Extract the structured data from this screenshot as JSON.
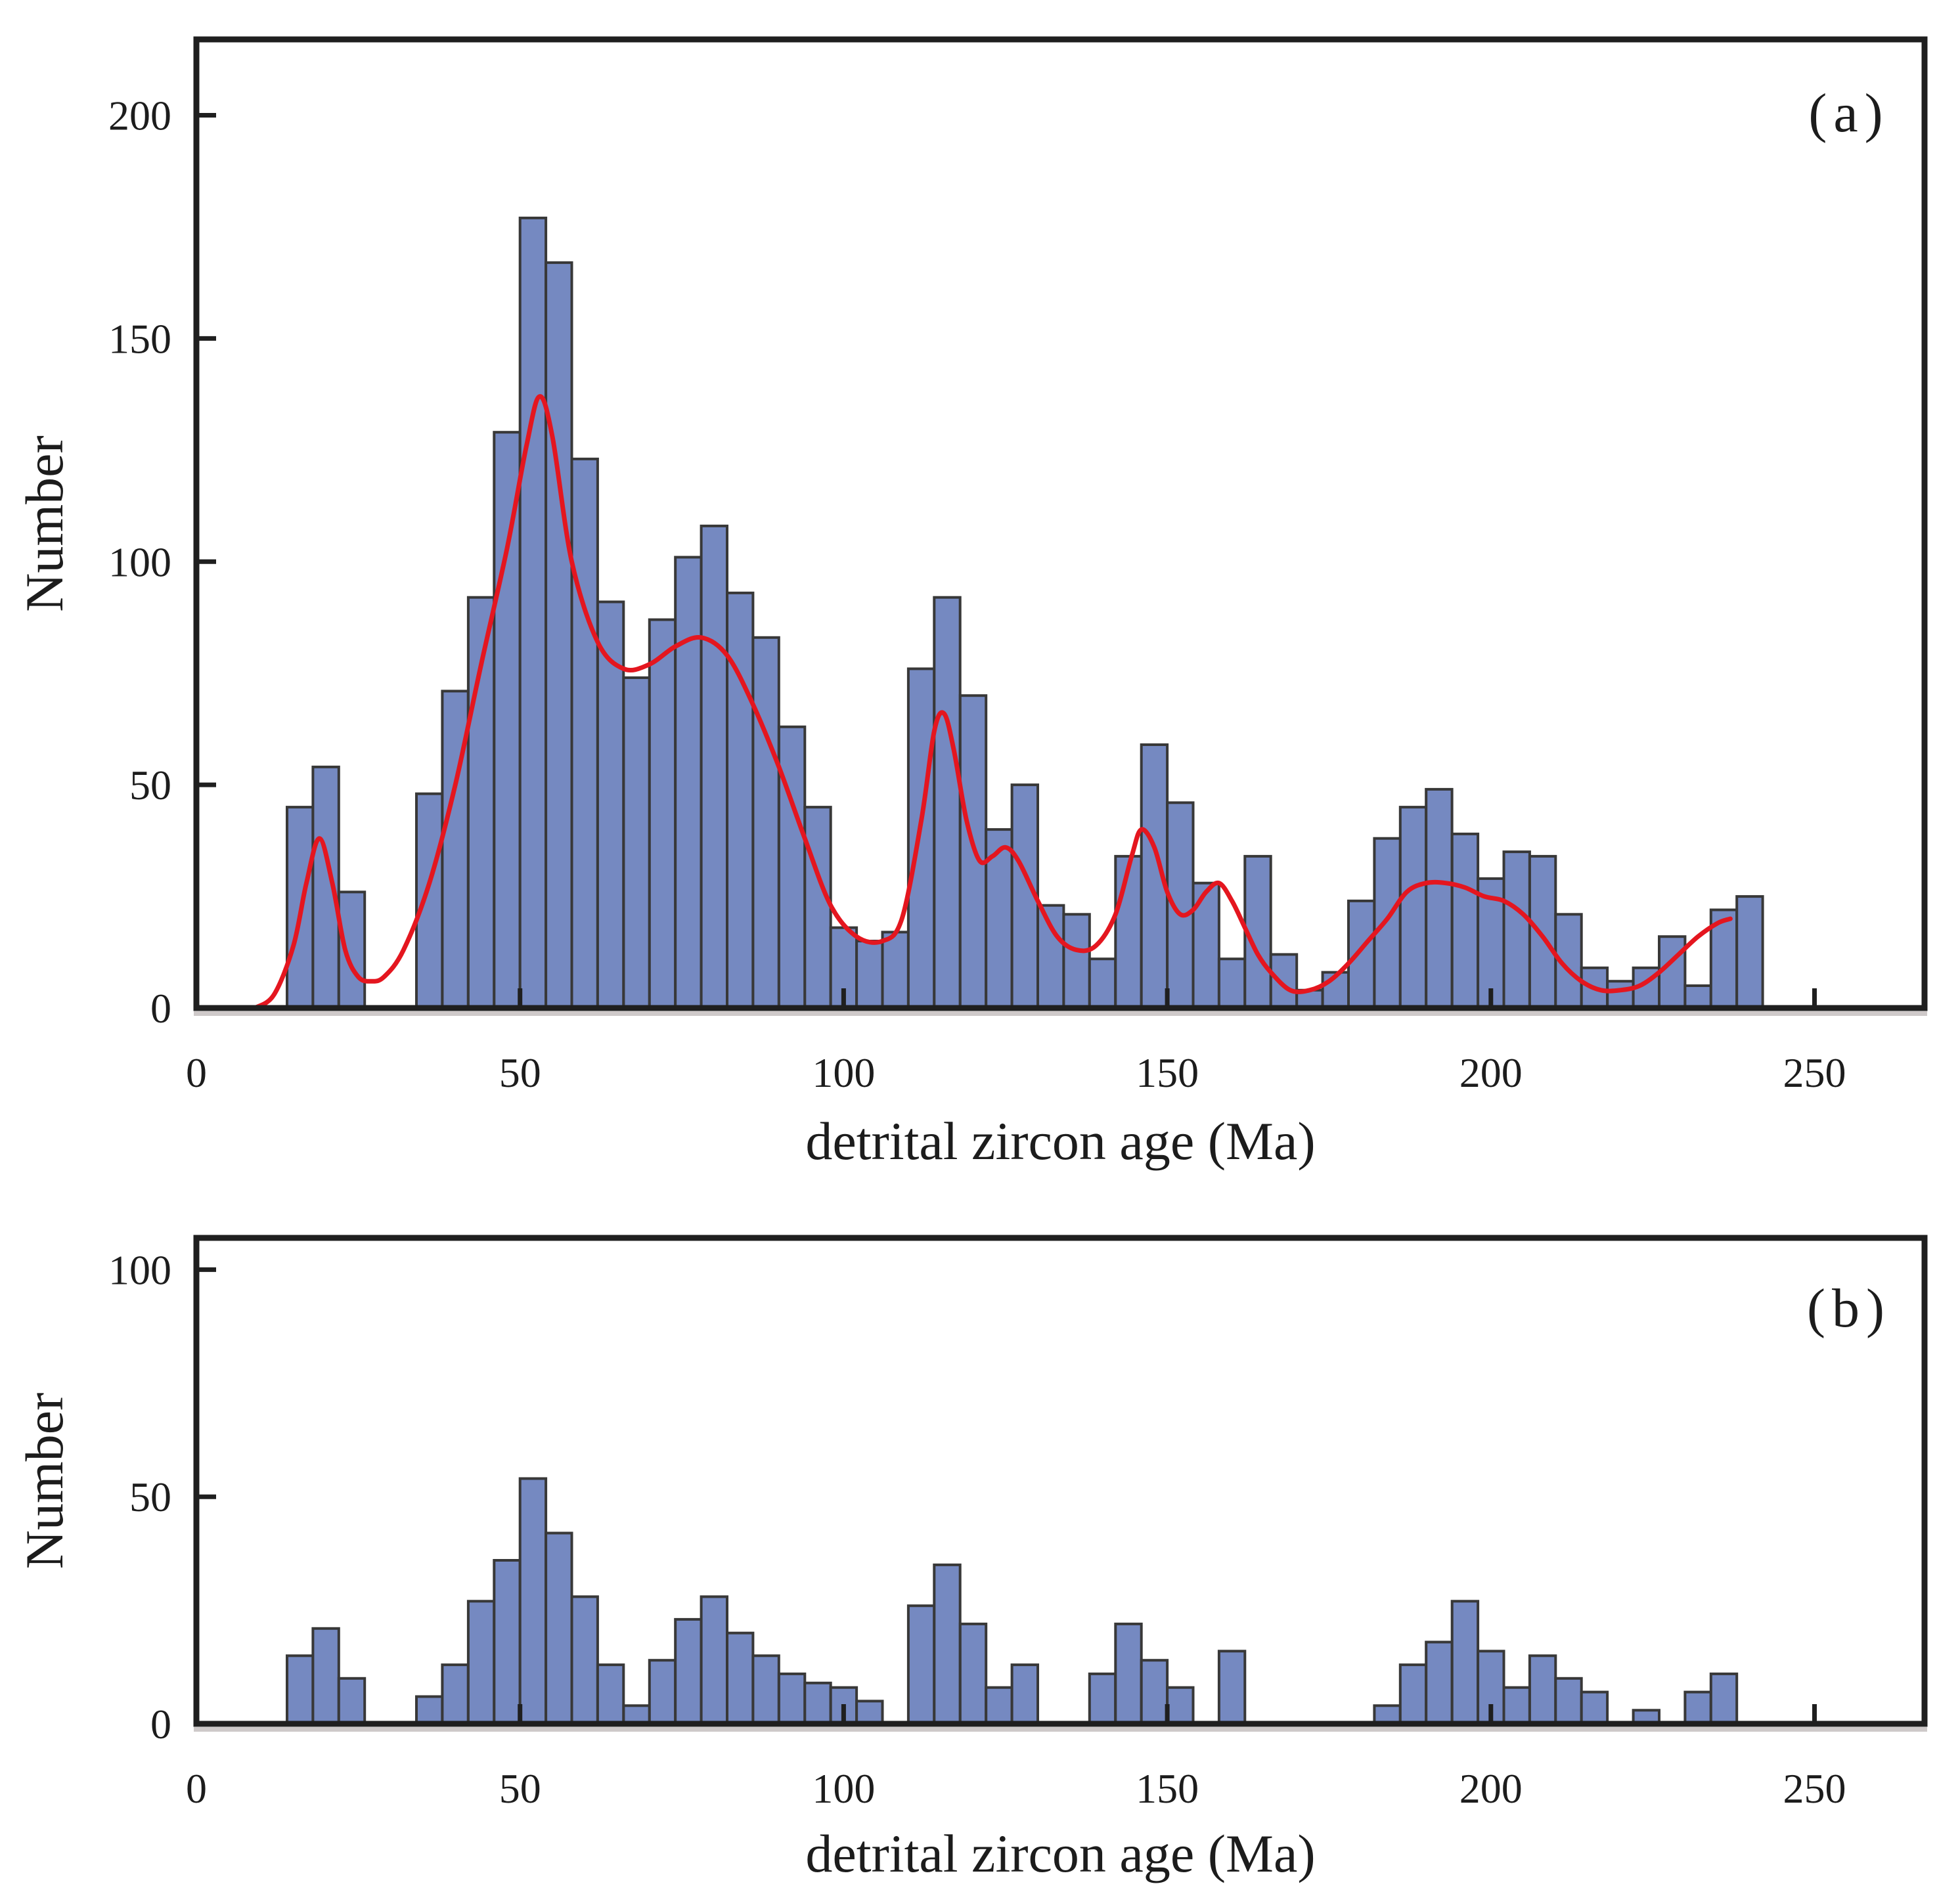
{
  "figure": {
    "background": "#ffffff",
    "description": "Two stacked detrital zircon age histograms",
    "bar_fill": "#7589c1",
    "bar_stroke": "#383838",
    "axis_color": "#1f1f1f",
    "axis_shadow_color": "#b9b2b2"
  },
  "chart_data": [
    {
      "type": "bar",
      "subtype": "histogram_with_kde",
      "panel_label": "(a)",
      "xlabel": "detrital zircon age (Ma)",
      "ylabel": "Number",
      "xlim": [
        0,
        267
      ],
      "ylim": [
        0,
        217
      ],
      "x_ticks": [
        0,
        50,
        100,
        150,
        200,
        250
      ],
      "y_ticks": [
        0,
        50,
        100,
        150,
        200
      ],
      "grid": false,
      "legend": "none",
      "bin_start": 14,
      "bin_width": 4,
      "values": [
        45,
        54,
        26,
        0,
        0,
        48,
        71,
        92,
        129,
        177,
        167,
        123,
        91,
        74,
        87,
        101,
        108,
        93,
        83,
        63,
        45,
        18,
        15,
        17,
        76,
        92,
        70,
        40,
        50,
        23,
        21,
        11,
        34,
        59,
        46,
        28,
        11,
        34,
        12,
        4,
        8,
        24,
        38,
        45,
        49,
        39,
        29,
        35,
        34,
        21,
        9,
        6,
        9,
        16,
        5,
        22,
        25
      ],
      "kde_curve": {
        "color": "#e4161f",
        "points": [
          [
            9,
            0
          ],
          [
            12,
            3
          ],
          [
            15,
            14
          ],
          [
            17,
            28
          ],
          [
            19,
            38
          ],
          [
            21,
            28
          ],
          [
            23,
            13
          ],
          [
            25,
            7
          ],
          [
            27,
            6
          ],
          [
            29,
            7
          ],
          [
            32,
            13
          ],
          [
            36,
            28
          ],
          [
            40,
            50
          ],
          [
            44,
            77
          ],
          [
            48,
            103
          ],
          [
            51,
            126
          ],
          [
            53,
            137
          ],
          [
            55,
            128
          ],
          [
            58,
            100
          ],
          [
            62,
            82
          ],
          [
            66,
            76
          ],
          [
            70,
            77
          ],
          [
            74,
            81
          ],
          [
            78,
            83
          ],
          [
            82,
            79
          ],
          [
            86,
            68
          ],
          [
            90,
            54
          ],
          [
            94,
            38
          ],
          [
            98,
            23
          ],
          [
            102,
            16
          ],
          [
            106,
            15
          ],
          [
            109,
            20
          ],
          [
            112,
            42
          ],
          [
            114,
            62
          ],
          [
            115.5,
            66
          ],
          [
            117,
            58
          ],
          [
            119,
            42
          ],
          [
            121,
            33
          ],
          [
            123,
            34
          ],
          [
            125,
            36
          ],
          [
            127,
            33
          ],
          [
            130,
            24
          ],
          [
            133,
            16
          ],
          [
            136,
            13
          ],
          [
            139,
            14
          ],
          [
            142,
            21
          ],
          [
            144.5,
            34
          ],
          [
            146,
            40
          ],
          [
            148,
            36
          ],
          [
            150,
            26
          ],
          [
            152,
            21
          ],
          [
            154,
            22
          ],
          [
            156,
            26
          ],
          [
            158,
            28
          ],
          [
            160,
            24
          ],
          [
            162,
            18
          ],
          [
            164,
            12
          ],
          [
            166,
            8
          ],
          [
            169,
            4
          ],
          [
            172,
            4
          ],
          [
            175,
            6
          ],
          [
            178,
            10
          ],
          [
            181,
            15
          ],
          [
            184,
            20
          ],
          [
            187,
            26
          ],
          [
            190,
            28
          ],
          [
            193,
            28
          ],
          [
            196,
            27
          ],
          [
            199,
            25
          ],
          [
            202,
            24
          ],
          [
            205,
            21
          ],
          [
            208,
            16
          ],
          [
            211,
            10
          ],
          [
            214,
            6
          ],
          [
            217,
            4
          ],
          [
            220,
            4
          ],
          [
            223,
            5
          ],
          [
            226,
            8
          ],
          [
            229,
            12
          ],
          [
            232,
            16
          ],
          [
            235,
            19
          ],
          [
            237,
            20
          ]
        ]
      }
    },
    {
      "type": "bar",
      "subtype": "histogram",
      "panel_label": "(b)",
      "xlabel": "detrital zircon age (Ma)",
      "ylabel": "Number",
      "xlim": [
        0,
        267
      ],
      "ylim": [
        0,
        107
      ],
      "x_ticks": [
        0,
        50,
        100,
        150,
        200,
        250
      ],
      "y_ticks": [
        0,
        50,
        100
      ],
      "grid": false,
      "legend": "none",
      "bin_start": 14,
      "bin_width": 4,
      "values": [
        15,
        21,
        10,
        0,
        0,
        6,
        13,
        27,
        36,
        54,
        42,
        28,
        13,
        4,
        14,
        23,
        28,
        20,
        15,
        11,
        9,
        8,
        5,
        0,
        26,
        35,
        22,
        8,
        13,
        0,
        0,
        11,
        22,
        14,
        8,
        0,
        16,
        0,
        0,
        0,
        0,
        0,
        4,
        13,
        18,
        27,
        16,
        8,
        15,
        10,
        7,
        0,
        3,
        0,
        7,
        11,
        0
      ],
      "kde_curve": null
    }
  ]
}
